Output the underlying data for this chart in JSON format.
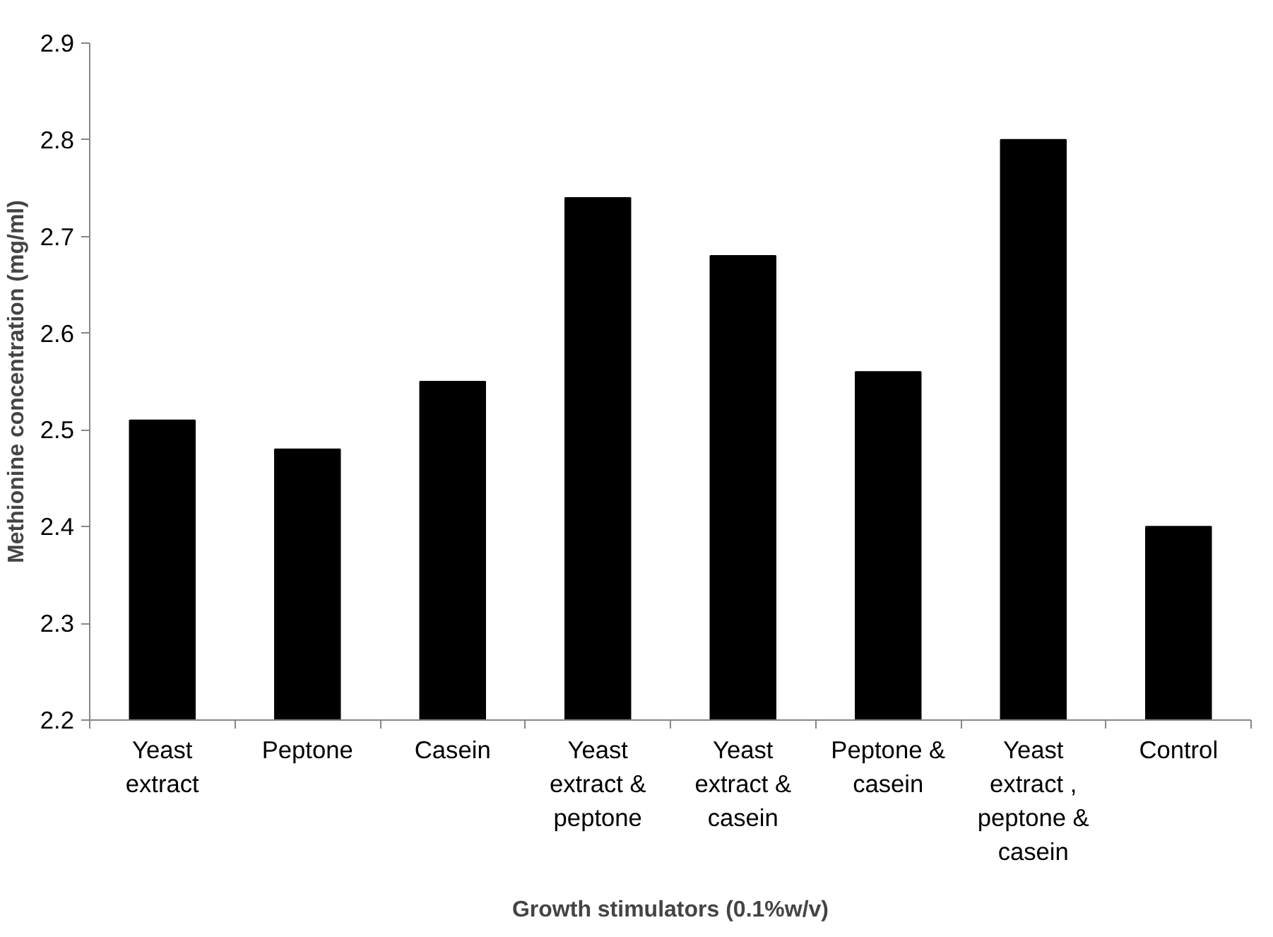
{
  "chart_data": {
    "type": "bar",
    "xlabel": "Growth stimulators (0.1%w/v)",
    "ylabel": "Methionine concentration (mg/ml)",
    "categories": [
      "Yeast extract",
      "Peptone",
      "Casein",
      "Yeast extract & peptone",
      "Yeast extract & casein",
      "Peptone & casein",
      "Yeast extract , peptone & casein",
      "Control"
    ],
    "values": [
      2.51,
      2.48,
      2.55,
      2.74,
      2.68,
      2.56,
      2.8,
      2.4
    ],
    "color": "#000000",
    "ylim": [
      2.2,
      2.9
    ],
    "yticks": [
      2.2,
      2.3,
      2.4,
      2.5,
      2.6,
      2.7,
      2.8,
      2.9
    ],
    "grid": false
  }
}
